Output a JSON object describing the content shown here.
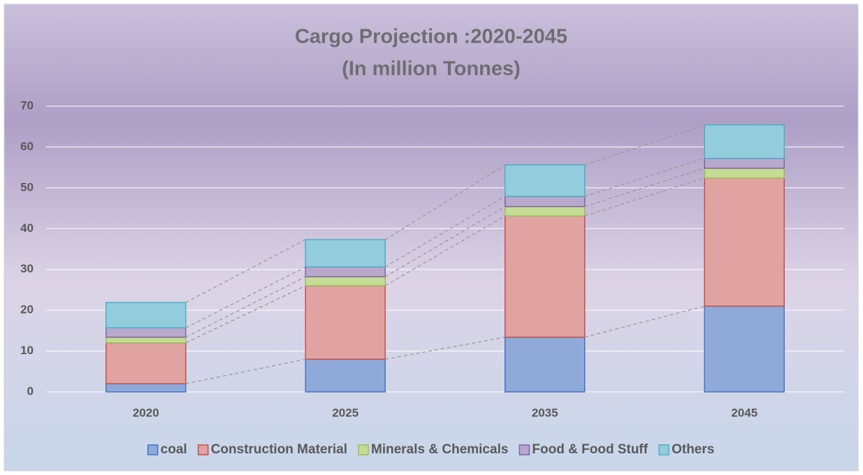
{
  "chart_data": {
    "type": "stacked_bar",
    "title": "Cargo Projection :2020-2045",
    "subtitle": "(In million Tonnes)",
    "categories": [
      "2020",
      "2025",
      "2035",
      "2045"
    ],
    "series": [
      {
        "name": "coal",
        "color": "#8faad8",
        "border": "#4472c4",
        "values": [
          2,
          8,
          13.4,
          21
        ]
      },
      {
        "name": "Construction Material",
        "color": "#e0a3a2",
        "border": "#c0504d",
        "values": [
          10,
          18,
          29.7,
          31.4
        ]
      },
      {
        "name": "Minerals & Chemicals",
        "color": "#c4dc94",
        "border": "#9bbb59",
        "values": [
          1.4,
          2.2,
          2.3,
          2.4
        ]
      },
      {
        "name": "Food & Food Stuff",
        "color": "#b8a8cc",
        "border": "#8064a2",
        "values": [
          2.3,
          2.4,
          2.5,
          2.4
        ]
      },
      {
        "name": "Others",
        "color": "#93cddd",
        "border": "#4bacc6",
        "values": [
          6.2,
          6.7,
          7.7,
          8.2
        ]
      }
    ],
    "ylim": [
      0,
      70
    ],
    "yticks": [
      0,
      10,
      20,
      30,
      40,
      50,
      60,
      70
    ],
    "grid": true,
    "legend": "bottom"
  }
}
